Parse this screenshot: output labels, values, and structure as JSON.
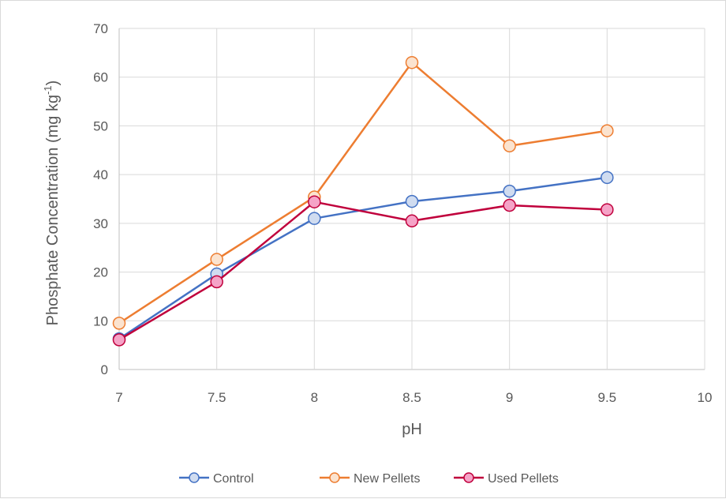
{
  "chart_data": {
    "type": "line",
    "title": "",
    "xlabel": "pH",
    "ylabel_main": "Phosphate  Concentration (mg kg",
    "ylabel_sup": "-1",
    "ylabel_close": ")",
    "xlim": [
      7,
      10
    ],
    "ylim": [
      0,
      70
    ],
    "xticks": [
      7,
      7.5,
      8,
      8.5,
      9,
      9.5,
      10
    ],
    "xtick_labels": [
      "7",
      "7.5",
      "8",
      "8.5",
      "9",
      "9.5",
      "10"
    ],
    "yticks": [
      0,
      10,
      20,
      30,
      40,
      50,
      60,
      70
    ],
    "ytick_labels": [
      "0",
      "10",
      "20",
      "30",
      "40",
      "50",
      "60",
      "70"
    ],
    "grid": true,
    "legend_position": "bottom",
    "series": [
      {
        "name": "Control",
        "color": "#4472c4",
        "marker_fill": "#d0dcf0",
        "x": [
          7,
          7.5,
          8,
          8.5,
          9,
          9.5
        ],
        "y": [
          6.3,
          19.6,
          31.0,
          34.5,
          36.6,
          39.4
        ]
      },
      {
        "name": "New Pellets",
        "color": "#ed7d31",
        "marker_fill": "#fbe3cf",
        "x": [
          7,
          7.5,
          8,
          8.5,
          9,
          9.5
        ],
        "y": [
          9.5,
          22.6,
          35.4,
          63.0,
          45.9,
          49.0
        ]
      },
      {
        "name": "Used Pellets",
        "color": "#c0003c",
        "marker_fill": "#f5a3c7",
        "x": [
          7,
          7.5,
          8,
          8.5,
          9,
          9.5
        ],
        "y": [
          6.1,
          18.0,
          34.4,
          30.5,
          33.7,
          32.8
        ]
      }
    ]
  }
}
